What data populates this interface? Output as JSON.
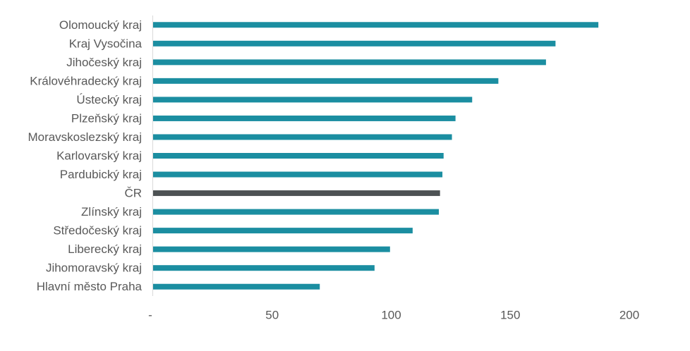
{
  "chart_data": {
    "type": "bar",
    "orientation": "horizontal",
    "title": "",
    "xlabel": "",
    "ylabel": "",
    "categories": [
      "Olomoucký kraj",
      "Kraj Vysočina",
      "Jihočeský kraj",
      "Královéhradecký kraj",
      "Ústecký kraj",
      "Plzeňský kraj",
      "Moravskoslezský kraj",
      "Karlovarský kraj",
      "Pardubický kraj",
      "ČR",
      "Zlínský kraj",
      "Středočeský kraj",
      "Liberecký kraj",
      "Jihomoravský kraj",
      "Hlavní město Praha"
    ],
    "values": [
      187,
      169,
      165,
      145,
      134,
      127,
      125.5,
      122,
      121.5,
      120.5,
      120,
      109,
      99.5,
      93,
      70
    ],
    "highlight_category": "ČR",
    "xlim": [
      0,
      200
    ],
    "xticks": [
      "-",
      "50",
      "100",
      "150",
      "200"
    ],
    "grid": false,
    "legend": "none",
    "colors": {
      "bar": "#1b8ea1",
      "highlight": "#4d5254",
      "text": "#595959",
      "axis": "#d9d9d9"
    }
  }
}
